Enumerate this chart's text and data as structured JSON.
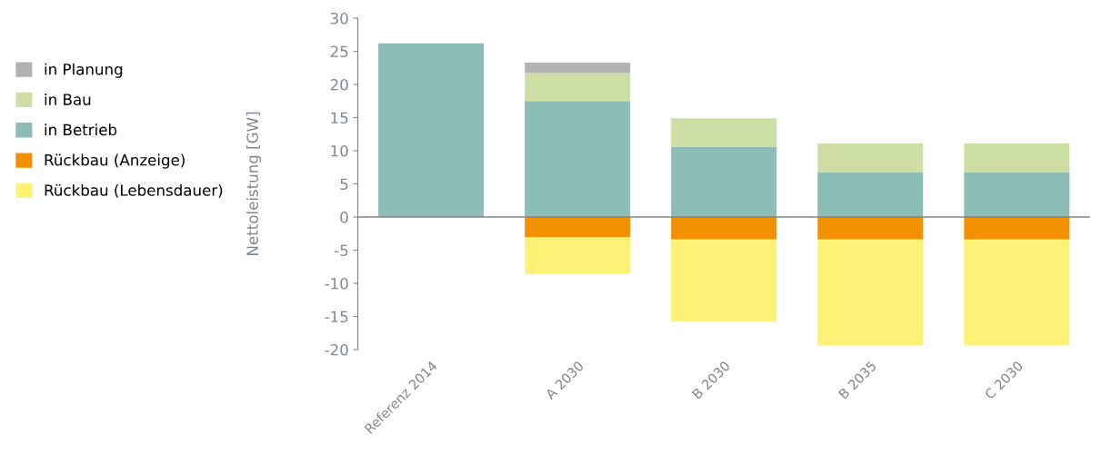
{
  "chart_data": {
    "type": "bar",
    "stacked": true,
    "ylabel": "Nettoleistung [GW]",
    "categories": [
      "Referenz 2014",
      "A 2030",
      "B 2030",
      "B 2035",
      "C 2030"
    ],
    "series": [
      {
        "name": "in Betrieb",
        "color": "#8cbdb7",
        "values": [
          26.2,
          17.5,
          10.6,
          6.7,
          6.7
        ]
      },
      {
        "name": "in Bau",
        "color": "#cddfa4",
        "values": [
          null,
          4.2,
          4.3,
          4.4,
          4.4
        ]
      },
      {
        "name": "in Planung",
        "color": "#b2b2b3",
        "values": [
          null,
          1.6,
          null,
          null,
          null
        ]
      },
      {
        "name": "Rückbau (Anzeige)",
        "color": "#f39000",
        "values": [
          null,
          -3.0,
          -3.4,
          -3.4,
          -3.4
        ]
      },
      {
        "name": "Rückbau (Lebensdauer)",
        "color": "#fdf275",
        "values": [
          null,
          -5.6,
          -12.4,
          -16.0,
          -16.0
        ]
      }
    ],
    "ylim": [
      -20,
      30
    ],
    "yticks": [
      -20,
      -15,
      -10,
      -5,
      0,
      5,
      10,
      15,
      20,
      25,
      30
    ],
    "legend": "left"
  }
}
